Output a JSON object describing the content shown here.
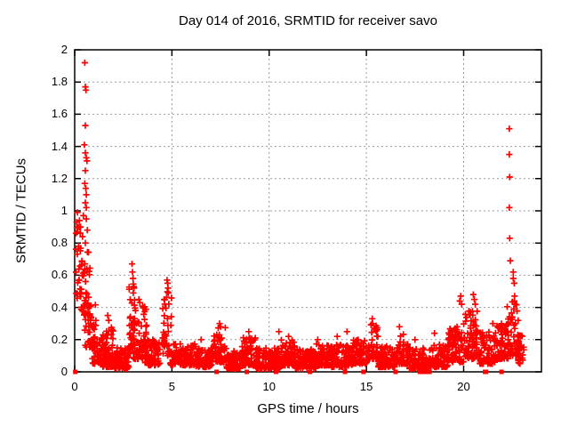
{
  "chart_data": {
    "type": "scatter",
    "title": "Day 014 of 2016, SRMTID for receiver savo",
    "xlabel": "GPS time / hours",
    "ylabel": "SRMTID / TECUs",
    "xlim": [
      0,
      24
    ],
    "ylim": [
      0,
      2
    ],
    "xticks": [
      {
        "v": 0,
        "label": "0"
      },
      {
        "v": 5,
        "label": "5"
      },
      {
        "v": 10,
        "label": "10"
      },
      {
        "v": 15,
        "label": "15"
      },
      {
        "v": 20,
        "label": "20"
      }
    ],
    "yticks": [
      {
        "v": 0,
        "label": "0"
      },
      {
        "v": 0.2,
        "label": "0.2"
      },
      {
        "v": 0.4,
        "label": "0.4"
      },
      {
        "v": 0.6,
        "label": "0.6"
      },
      {
        "v": 0.8,
        "label": "0.8"
      },
      {
        "v": 1,
        "label": "1"
      },
      {
        "v": 1.2,
        "label": "1.2"
      },
      {
        "v": 1.4,
        "label": "1.4"
      },
      {
        "v": 1.6,
        "label": "1.6"
      },
      {
        "v": 1.8,
        "label": "1.8"
      },
      {
        "v": 2,
        "label": "2"
      }
    ],
    "grid": "dotted",
    "legend": "none",
    "marker": "plus",
    "series_name": "SRMTID",
    "outliers": [
      [
        0.52,
        1.92
      ],
      [
        0.55,
        1.77
      ],
      [
        0.58,
        1.75
      ],
      [
        0.55,
        1.53
      ],
      [
        0.5,
        1.41
      ],
      [
        0.55,
        1.36
      ],
      [
        0.6,
        1.33
      ],
      [
        0.63,
        1.31
      ],
      [
        0.55,
        1.25
      ],
      [
        0.52,
        1.17
      ],
      [
        0.57,
        1.14
      ],
      [
        0.6,
        1.1
      ],
      [
        0.55,
        1.05
      ],
      [
        0.6,
        1.02
      ],
      [
        0.14,
        0.99
      ],
      [
        0.45,
        0.97
      ],
      [
        0.1,
        0.93
      ],
      [
        0.6,
        0.95
      ],
      [
        0.3,
        0.9
      ],
      [
        0.65,
        0.88
      ],
      [
        0.07,
        0.86
      ],
      [
        0.4,
        0.84
      ],
      [
        0.55,
        0.8
      ],
      [
        0.2,
        0.78
      ],
      [
        1.7,
        0.35
      ],
      [
        1.75,
        0.32
      ],
      [
        2.95,
        0.67
      ],
      [
        2.97,
        0.62
      ],
      [
        3.0,
        0.58
      ],
      [
        3.05,
        0.52
      ],
      [
        3.3,
        0.45
      ],
      [
        3.35,
        0.43
      ],
      [
        4.6,
        0.45
      ],
      [
        4.75,
        0.57
      ],
      [
        4.78,
        0.55
      ],
      [
        4.8,
        0.52
      ],
      [
        4.82,
        0.49
      ],
      [
        6.5,
        0.2
      ],
      [
        7.45,
        0.3
      ],
      [
        7.5,
        0.28
      ],
      [
        8.95,
        0.25
      ],
      [
        10.5,
        0.25
      ],
      [
        11.0,
        0.22
      ],
      [
        12.5,
        0.2
      ],
      [
        13.5,
        0.22
      ],
      [
        14.0,
        0.25
      ],
      [
        15.3,
        0.33
      ],
      [
        15.32,
        0.3
      ],
      [
        16.7,
        0.28
      ],
      [
        17.5,
        0.2
      ],
      [
        18.5,
        0.24
      ],
      [
        19.8,
        0.44
      ],
      [
        19.85,
        0.47
      ],
      [
        19.9,
        0.42
      ],
      [
        20.5,
        0.48
      ],
      [
        20.55,
        0.45
      ],
      [
        20.6,
        0.42
      ],
      [
        21.5,
        0.3
      ],
      [
        22.35,
        1.51
      ],
      [
        22.35,
        1.35
      ],
      [
        22.37,
        1.21
      ],
      [
        22.35,
        1.02
      ],
      [
        22.37,
        0.83
      ],
      [
        22.4,
        0.69
      ],
      [
        22.55,
        0.62
      ],
      [
        22.55,
        0.58
      ],
      [
        22.6,
        0.55
      ],
      [
        22.62,
        0.47
      ],
      [
        22.6,
        0.44
      ],
      [
        22.65,
        0.42
      ]
    ],
    "zero_points": [
      0.03,
      7.3,
      8.85,
      10.35,
      12.1,
      13.9,
      14.85,
      16.5,
      17.75,
      17.95,
      18.15,
      18.25,
      21.1,
      21.15,
      21.95
    ],
    "noise_bands": [
      [
        0.05,
        0.35,
        0.45,
        0.95,
        25
      ],
      [
        0.3,
        0.8,
        0.35,
        0.75,
        45
      ],
      [
        0.5,
        1.1,
        0.15,
        0.45,
        50
      ],
      [
        0.9,
        1.6,
        0.05,
        0.22,
        60
      ],
      [
        1.4,
        2.1,
        0.03,
        0.28,
        80
      ],
      [
        2.0,
        2.8,
        0.02,
        0.15,
        90
      ],
      [
        2.8,
        3.1,
        0.1,
        0.55,
        35
      ],
      [
        3.0,
        3.7,
        0.08,
        0.42,
        70
      ],
      [
        3.6,
        4.4,
        0.04,
        0.2,
        70
      ],
      [
        4.5,
        5.0,
        0.1,
        0.5,
        40
      ],
      [
        4.9,
        6.2,
        0.04,
        0.18,
        110
      ],
      [
        6.2,
        7.1,
        0.03,
        0.15,
        90
      ],
      [
        7.1,
        7.8,
        0.06,
        0.28,
        70
      ],
      [
        7.8,
        8.6,
        0.02,
        0.13,
        80
      ],
      [
        8.6,
        9.3,
        0.04,
        0.22,
        70
      ],
      [
        9.3,
        10.6,
        0.02,
        0.15,
        120
      ],
      [
        10.6,
        11.3,
        0.04,
        0.2,
        80
      ],
      [
        11.3,
        12.4,
        0.02,
        0.14,
        100
      ],
      [
        12.4,
        13.2,
        0.04,
        0.18,
        80
      ],
      [
        13.2,
        14.3,
        0.03,
        0.17,
        100
      ],
      [
        14.3,
        15.1,
        0.05,
        0.2,
        80
      ],
      [
        15.1,
        15.6,
        0.08,
        0.3,
        45
      ],
      [
        15.6,
        16.5,
        0.03,
        0.16,
        80
      ],
      [
        16.5,
        17.2,
        0.05,
        0.24,
        70
      ],
      [
        17.2,
        18.2,
        0.02,
        0.15,
        90
      ],
      [
        18.2,
        19.2,
        0.03,
        0.18,
        80
      ],
      [
        19.2,
        20.0,
        0.06,
        0.28,
        80
      ],
      [
        20.0,
        20.8,
        0.08,
        0.38,
        80
      ],
      [
        20.8,
        21.6,
        0.05,
        0.25,
        70
      ],
      [
        21.6,
        22.3,
        0.08,
        0.3,
        70
      ],
      [
        22.2,
        22.9,
        0.1,
        0.45,
        60
      ],
      [
        22.8,
        23.1,
        0.05,
        0.25,
        20
      ]
    ],
    "seed": 20160114,
    "y_bias": 1.8
  },
  "colors": {
    "marker": "#ff0000",
    "grid": "#9b9b9b",
    "frame": "#000000",
    "background": "#ffffff",
    "text": "#000000"
  }
}
